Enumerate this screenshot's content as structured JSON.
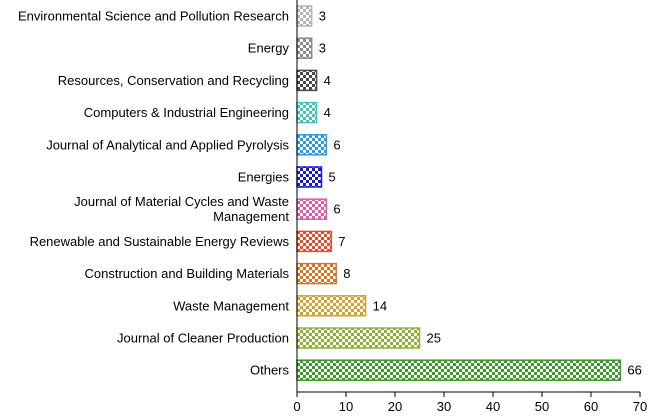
{
  "chart_data": {
    "type": "bar",
    "orientation": "horizontal",
    "categories": [
      "Environmental Science and Pollution Research",
      "Energy",
      "Resources, Conservation and Recycling",
      "Computers & Industrial Engineering",
      "Journal of Analytical and Applied Pyrolysis",
      "Energies",
      "Journal of Material Cycles and Waste Management",
      "Renewable and Sustainable Energy Reviews",
      "Construction and Building Materials",
      "Waste Management",
      "Journal of Cleaner Production",
      "Others"
    ],
    "values": [
      3,
      3,
      4,
      4,
      6,
      5,
      6,
      7,
      8,
      14,
      25,
      66
    ],
    "value_labels": [
      "3",
      "3",
      "4",
      "4",
      "6",
      "5",
      "6",
      "7",
      "8",
      "14",
      "25",
      "66"
    ],
    "bar_colors": [
      "#b5b5b5",
      "#8c8c8c",
      "#4a4a4a",
      "#40c4c4",
      "#2b9be6",
      "#1a1acc",
      "#e05aa8",
      "#e84a2a",
      "#d8741e",
      "#d6a22e",
      "#8fb03a",
      "#3a9a2a"
    ],
    "bar_pattern": "checkerboard",
    "xlim": [
      0,
      70
    ],
    "xticks": [
      0,
      10,
      20,
      30,
      40,
      50,
      60,
      70
    ],
    "xtick_labels": [
      "0",
      "10",
      "20",
      "30",
      "40",
      "50",
      "60",
      "70"
    ],
    "title": "",
    "xlabel": "",
    "ylabel": "",
    "grid": false,
    "legend": "none"
  }
}
